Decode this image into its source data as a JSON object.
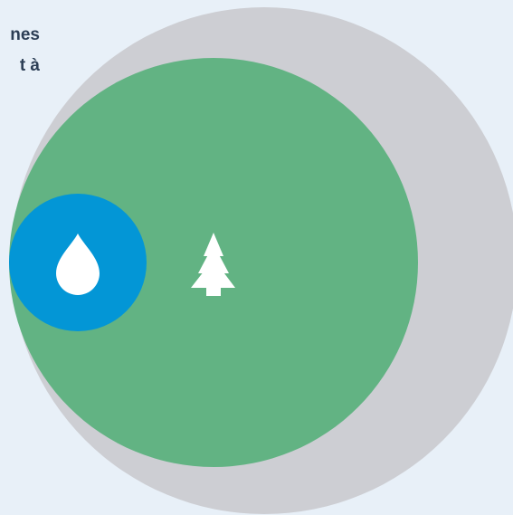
{
  "caption": {
    "line1": "nes",
    "line2": "t à"
  },
  "circles": {
    "outer": {
      "color": "#cdced3"
    },
    "middle": {
      "color": "#62b383",
      "icon": "tree-icon"
    },
    "inner": {
      "color": "#0396d6",
      "icon": "water-drop-icon"
    }
  },
  "colors": {
    "background": "#e8f0f8",
    "text": "#2c3e55",
    "icon": "#ffffff"
  }
}
